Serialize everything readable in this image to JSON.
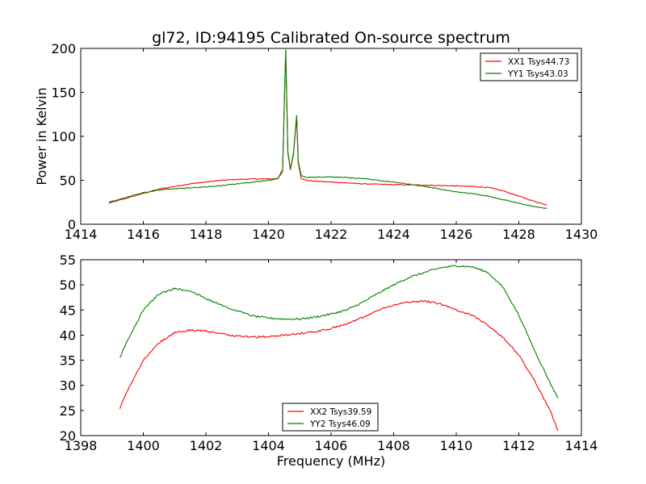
{
  "chart_data": [
    {
      "type": "line",
      "title": "gl72, ID:94195 Calibrated On-source spectrum",
      "xlabel": "",
      "ylabel": "Power in Kelvin",
      "xlim": [
        1414,
        1430
      ],
      "ylim": [
        0,
        200
      ],
      "xticks": [
        "1414",
        "1416",
        "1418",
        "1420",
        "1422",
        "1424",
        "1426",
        "1428",
        "1430"
      ],
      "yticks": [
        "0",
        "50",
        "100",
        "150",
        "200"
      ],
      "legend": "top-right",
      "grid": false,
      "series": [
        {
          "name": "XX1 Tsys44.73",
          "color": "#ff0000",
          "x": [
            1414.9,
            1415.5,
            1416.0,
            1416.5,
            1417.0,
            1417.5,
            1418.0,
            1418.5,
            1419.0,
            1419.5,
            1420.0,
            1420.3,
            1420.45,
            1420.55,
            1420.62,
            1420.7,
            1420.8,
            1420.9,
            1420.95,
            1421.05,
            1421.2,
            1421.5,
            1422.0,
            1423.0,
            1424.0,
            1425.0,
            1426.0,
            1426.5,
            1427.0,
            1427.5,
            1428.0,
            1428.5,
            1428.9
          ],
          "y": [
            24,
            30,
            35,
            40,
            43,
            46,
            48,
            50,
            51,
            51.5,
            51.5,
            52,
            60,
            197,
            80,
            62,
            80,
            122,
            70,
            52,
            50,
            49,
            48,
            46,
            45,
            44.5,
            43.5,
            43,
            42,
            38,
            32,
            26,
            22
          ]
        },
        {
          "name": "YY1 Tsys43.03",
          "color": "#008000",
          "x": [
            1414.9,
            1415.5,
            1416.0,
            1416.5,
            1417.0,
            1417.5,
            1418.0,
            1418.5,
            1419.0,
            1419.5,
            1420.0,
            1420.3,
            1420.45,
            1420.55,
            1420.62,
            1420.7,
            1420.8,
            1420.9,
            1420.95,
            1421.05,
            1421.2,
            1421.5,
            1422.0,
            1423.0,
            1424.0,
            1425.0,
            1426.0,
            1426.5,
            1427.0,
            1427.5,
            1428.0,
            1428.5,
            1428.9
          ],
          "y": [
            25,
            31,
            36,
            39,
            40.5,
            41.5,
            42.5,
            44,
            46,
            48,
            50,
            52,
            62,
            199,
            82,
            63,
            82,
            124,
            72,
            55,
            53.5,
            53.5,
            54,
            52,
            48,
            43,
            37,
            35,
            32,
            28,
            24,
            20,
            18
          ]
        }
      ]
    },
    {
      "type": "line",
      "title": "",
      "xlabel": "Frequency (MHz)",
      "ylabel": "",
      "xlim": [
        1398,
        1414
      ],
      "ylim": [
        20,
        55
      ],
      "xticks": [
        "1398",
        "1400",
        "1402",
        "1404",
        "1406",
        "1408",
        "1410",
        "1412",
        "1414"
      ],
      "yticks": [
        "20",
        "25",
        "30",
        "35",
        "40",
        "45",
        "50",
        "55"
      ],
      "legend": "lower-center",
      "grid": false,
      "series": [
        {
          "name": "XX2 Tsys39.59",
          "color": "#ff0000",
          "x": [
            1399.25,
            1399.5,
            1399.75,
            1400.0,
            1400.5,
            1401.0,
            1401.5,
            1402.0,
            1402.5,
            1403.0,
            1403.5,
            1404.0,
            1404.5,
            1405.0,
            1405.5,
            1406.0,
            1406.5,
            1407.0,
            1407.5,
            1408.0,
            1408.5,
            1409.0,
            1409.5,
            1410.0,
            1410.5,
            1411.0,
            1411.5,
            1412.0,
            1412.5,
            1413.0,
            1413.25
          ],
          "y": [
            25.5,
            29,
            32,
            35,
            38.5,
            40.5,
            41,
            40.8,
            40.3,
            39.8,
            39.6,
            39.7,
            40,
            40.3,
            40.7,
            41.3,
            42.2,
            43.5,
            45,
            46,
            46.6,
            46.8,
            46.2,
            45,
            44,
            42,
            39.5,
            36,
            31,
            25,
            21
          ]
        },
        {
          "name": "YY2 Tsys46.09",
          "color": "#008000",
          "x": [
            1399.25,
            1399.5,
            1399.75,
            1400.0,
            1400.5,
            1401.0,
            1401.5,
            1402.0,
            1402.5,
            1403.0,
            1403.5,
            1404.0,
            1404.5,
            1405.0,
            1405.5,
            1406.0,
            1406.5,
            1407.0,
            1407.5,
            1408.0,
            1408.5,
            1409.0,
            1409.5,
            1410.0,
            1410.5,
            1411.0,
            1411.5,
            1412.0,
            1412.5,
            1413.0,
            1413.25
          ],
          "y": [
            35.5,
            39,
            42,
            45,
            48.2,
            49.3,
            48.8,
            47.3,
            46,
            44.8,
            43.8,
            43.4,
            43.2,
            43.2,
            43.6,
            44.2,
            45,
            46.5,
            48.3,
            50,
            51.5,
            52.5,
            53.4,
            53.8,
            53.6,
            52.5,
            49.5,
            44,
            37,
            30.5,
            27.5
          ]
        }
      ]
    }
  ]
}
